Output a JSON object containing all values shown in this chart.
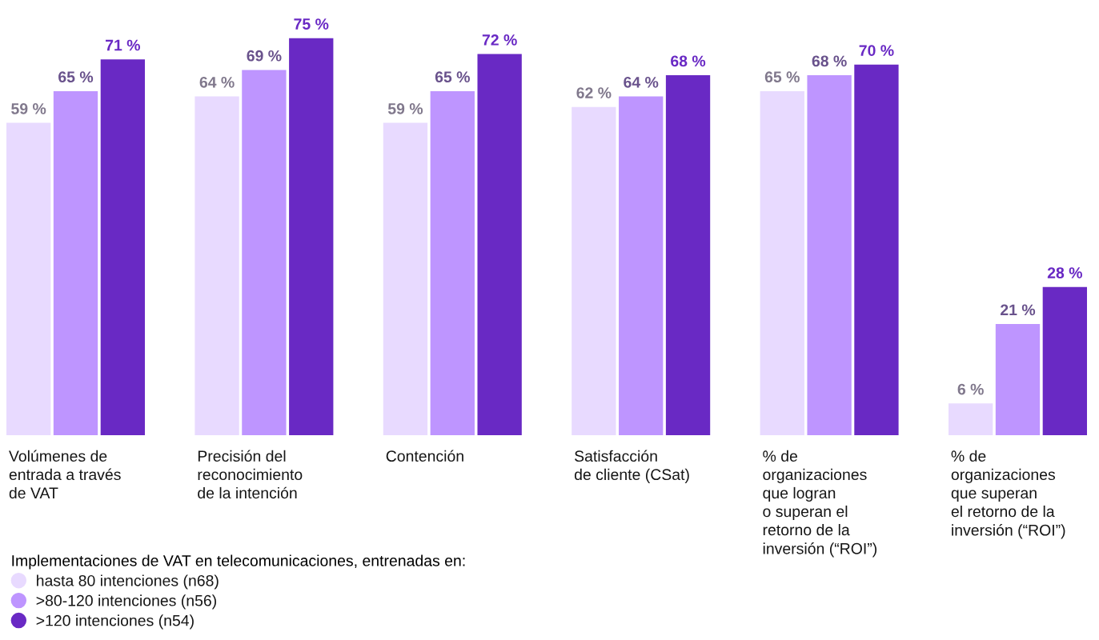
{
  "chart_data": {
    "type": "bar",
    "categories": [
      "Volúmenes de\nentrada a través\nde VAT",
      "Precisión del\nreconocimiento\nde la intención",
      "Contención",
      "Satisfacción\nde cliente (CSat)",
      "% de\norganizaciones\nque logran\no superan el\nretorno de la\ninversión (“ROI”)",
      "% de\norganizaciones\nque superan\nel retorno de la\ninversión (“ROI”)"
    ],
    "series": [
      {
        "name": "hasta 80 intenciones (n68)",
        "color": "#e8daff",
        "values": [
          59,
          64,
          59,
          62,
          65,
          6
        ],
        "value_labels": [
          "59 %",
          "64 %",
          "59 %",
          "62 %",
          "65 %",
          "6 %"
        ]
      },
      {
        "name": ">80-120 intenciones (n56)",
        "color": "#be95ff",
        "values": [
          65,
          69,
          65,
          64,
          68,
          21
        ],
        "value_labels": [
          "65 %",
          "69 %",
          "65 %",
          "64 %",
          "68 %",
          "21 %"
        ]
      },
      {
        "name": ">120 intenciones (n54)",
        "color": "#6929c4",
        "values": [
          71,
          75,
          72,
          68,
          70,
          28
        ],
        "value_labels": [
          "71 %",
          "75 %",
          "72 %",
          "68 %",
          "70 %",
          "28 %"
        ]
      }
    ],
    "legend": "bottom left",
    "legend_title": "Implementaciones de VAT en telecomunicaciones, entrenadas en:",
    "marker": "circle"
  }
}
